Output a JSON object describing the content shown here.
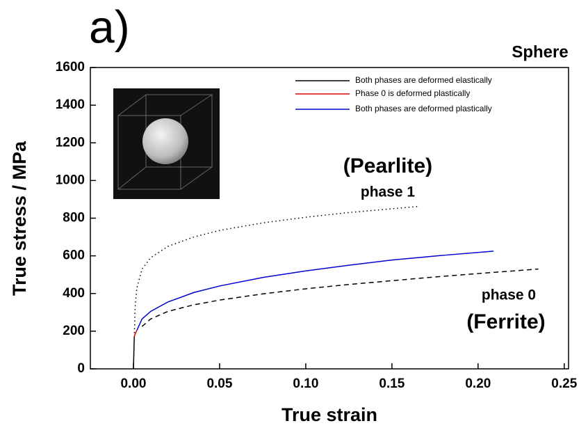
{
  "chart_data": {
    "type": "line",
    "title": "a)",
    "subtitle": "Sphere",
    "x_label": "True strain",
    "y_label": "True stress / MPa",
    "xlim": [
      -0.025,
      0.2525
    ],
    "ylim": [
      0,
      1600
    ],
    "xticks": [
      {
        "value": 0,
        "label": "0.00"
      },
      {
        "value": 0.05,
        "label": "0.05"
      },
      {
        "value": 0.1,
        "label": "0.10"
      },
      {
        "value": 0.15,
        "label": "0.15"
      },
      {
        "value": 0.2,
        "label": "0.20"
      },
      {
        "value": 0.25,
        "label": "0.25"
      }
    ],
    "yticks": [
      0,
      200,
      400,
      600,
      800,
      1000,
      1200,
      1400,
      1600
    ],
    "series": [
      {
        "name": "Both phases are deformed elastically",
        "color": "#000000",
        "x": [
          0,
          0.0005
        ],
        "values": [
          0,
          170
        ]
      },
      {
        "name": "Phase 0 is deformed plastically",
        "color": "#e00000",
        "x": [
          0.0005,
          0.001,
          0.0015,
          0.002
        ],
        "values": [
          170,
          185,
          195,
          205
        ]
      },
      {
        "name": "Both phases are deformed plastically",
        "color": "#0000d0",
        "x": [
          0.002,
          0.005,
          0.01,
          0.02,
          0.035,
          0.05,
          0.075,
          0.1,
          0.125,
          0.15,
          0.18,
          0.209
        ],
        "values": [
          205,
          265,
          305,
          355,
          405,
          440,
          485,
          520,
          550,
          578,
          603,
          625
        ]
      }
    ],
    "phase_curves": [
      {
        "dash": "dotted",
        "color": "#000000",
        "x": [
          0.0005,
          0.001,
          0.002,
          0.005,
          0.01,
          0.02,
          0.035,
          0.05,
          0.075,
          0.1,
          0.125,
          0.15,
          0.165
        ],
        "values": [
          170,
          330,
          430,
          530,
          590,
          650,
          700,
          735,
          775,
          805,
          830,
          850,
          862
        ]
      },
      {
        "dash": "dashed",
        "color": "#000000",
        "x": [
          0.005,
          0.01,
          0.02,
          0.035,
          0.05,
          0.075,
          0.1,
          0.125,
          0.15,
          0.175,
          0.2,
          0.235
        ],
        "values": [
          225,
          265,
          305,
          340,
          365,
          398,
          425,
          448,
          468,
          488,
          506,
          530
        ]
      }
    ],
    "annotations": [
      "(Pearlite)",
      "phase 1",
      "phase 0",
      "(Ferrite)"
    ]
  }
}
